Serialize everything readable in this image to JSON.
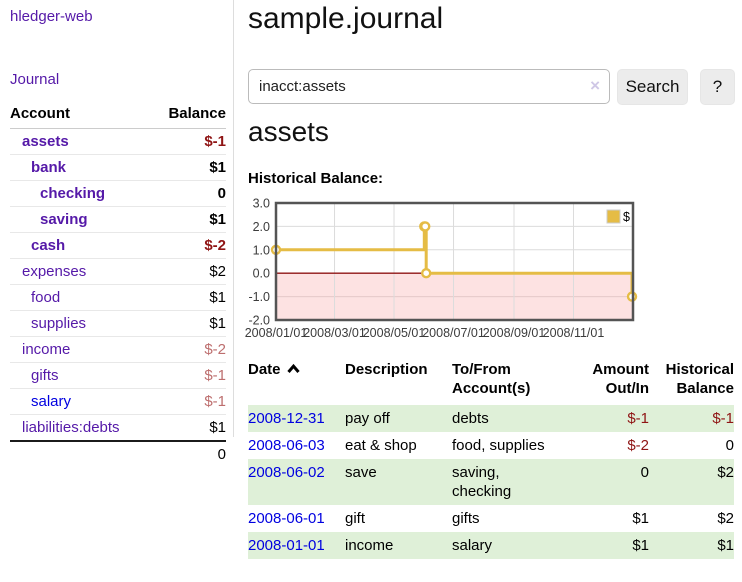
{
  "brand": {
    "label": "hledger-web"
  },
  "nav": {
    "journal_label": "Journal"
  },
  "sidebar": {
    "columns": {
      "account": "Account",
      "balance": "Balance"
    },
    "accounts": [
      {
        "name": "assets",
        "balance": "$-1",
        "indent": 1,
        "bold": true,
        "amount_style": "neg-strong"
      },
      {
        "name": "bank",
        "balance": "$1",
        "indent": 2,
        "bold": true,
        "amount_style": "pos"
      },
      {
        "name": "checking",
        "balance": "0",
        "indent": 3,
        "bold": true,
        "amount_style": "pos"
      },
      {
        "name": "saving",
        "balance": "$1",
        "indent": 3,
        "bold": true,
        "amount_style": "pos"
      },
      {
        "name": "cash",
        "balance": "$-2",
        "indent": 2,
        "bold": true,
        "amount_style": "neg-strong"
      },
      {
        "name": "expenses",
        "balance": "$2",
        "indent": 1,
        "bold": false,
        "amount_style": "pos"
      },
      {
        "name": "food",
        "balance": "$1",
        "indent": 2,
        "bold": false,
        "amount_style": "pos"
      },
      {
        "name": "supplies",
        "balance": "$1",
        "indent": 2,
        "bold": false,
        "amount_style": "pos"
      },
      {
        "name": "income",
        "balance": "$-2",
        "indent": 1,
        "bold": false,
        "amount_style": "neg-soft"
      },
      {
        "name": "gifts",
        "balance": "$-1",
        "indent": 2,
        "bold": false,
        "amount_style": "neg-soft"
      },
      {
        "name": "salary",
        "balance": "$-1",
        "indent": 2,
        "bold": false,
        "amount_style": "neg-soft",
        "link_style": "unvisited"
      },
      {
        "name": "liabilities:debts",
        "balance": "$1",
        "indent": 1,
        "bold": false,
        "amount_style": "pos"
      }
    ],
    "total": "0"
  },
  "page": {
    "title": "sample.journal",
    "account_heading": "assets",
    "chart_heading": "Historical Balance:"
  },
  "search": {
    "value": "inacct:assets",
    "clear_icon": "×",
    "button_label": "Search",
    "help_label": "?"
  },
  "chart_data": {
    "type": "line",
    "style": "step",
    "title": "Historical Balance",
    "series": [
      {
        "name": "$",
        "color": "#e5bc45",
        "points": [
          {
            "date": "2008-01-01",
            "value": 1
          },
          {
            "date": "2008-06-01",
            "value": 2
          },
          {
            "date": "2008-06-02",
            "value": 2
          },
          {
            "date": "2008-06-03",
            "value": 0
          },
          {
            "date": "2008-12-31",
            "value": -1
          }
        ]
      }
    ],
    "x_range": [
      "2008-01-01",
      "2009-01-01"
    ],
    "x_ticks": [
      {
        "date": "2008-01-01",
        "label": "2008/01/01"
      },
      {
        "date": "2008-03-01",
        "label": "2008/03/01"
      },
      {
        "date": "2008-05-01",
        "label": "2008/05/01"
      },
      {
        "date": "2008-07-01",
        "label": "2008/07/01"
      },
      {
        "date": "2008-09-01",
        "label": "2008/09/01"
      },
      {
        "date": "2008-11-01",
        "label": "2008/11/01"
      },
      {
        "date": "2009-01-01",
        "label": ""
      }
    ],
    "y_ticks": [
      {
        "value": 3,
        "label": "3.0"
      },
      {
        "value": 2,
        "label": "2.0"
      },
      {
        "value": 1,
        "label": "1.0"
      },
      {
        "value": 0,
        "label": "0.0"
      },
      {
        "value": -1,
        "label": "-1.0"
      },
      {
        "value": -2,
        "label": "-2.0"
      }
    ],
    "ylim": [
      -2,
      3
    ],
    "grid": true,
    "legend": {
      "position": "top-right",
      "entries": [
        {
          "label": "$",
          "color": "#e5bc45"
        }
      ]
    },
    "negative_region_color": "#fde2e2",
    "zero_line_color": "#8f1414",
    "grid_color": "#dcdcdc",
    "border_color": "#545454",
    "tick_text_color": "#3c3c3c"
  },
  "register": {
    "headers": {
      "date": "Date",
      "description": "Description",
      "accounts": "To/From Account(s)",
      "amount": "Amount Out/In",
      "balance": "Historical Balance"
    },
    "sort_icon": "chevron-up",
    "rows": [
      {
        "date": "2008-12-31",
        "description": "pay off",
        "accounts": "debts",
        "amount": "$-1",
        "balance": "$-1"
      },
      {
        "date": "2008-06-03",
        "description": "eat & shop",
        "accounts": "food, supplies",
        "amount": "$-2",
        "balance": "0"
      },
      {
        "date": "2008-06-02",
        "description": "save",
        "accounts": "saving, checking",
        "amount": "0",
        "balance": "$2"
      },
      {
        "date": "2008-06-01",
        "description": "gift",
        "accounts": "gifts",
        "amount": "$1",
        "balance": "$2"
      },
      {
        "date": "2008-01-01",
        "description": "income",
        "accounts": "salary",
        "amount": "$1",
        "balance": "$1"
      }
    ]
  },
  "colors": {
    "accent_purple": "#5519a8",
    "link_blue": "#0000e0",
    "negative_strong": "#8f1414",
    "negative_soft": "#bd6e6e",
    "row_stripe_green": "#dff0d8",
    "chart_line": "#e5bc45"
  }
}
